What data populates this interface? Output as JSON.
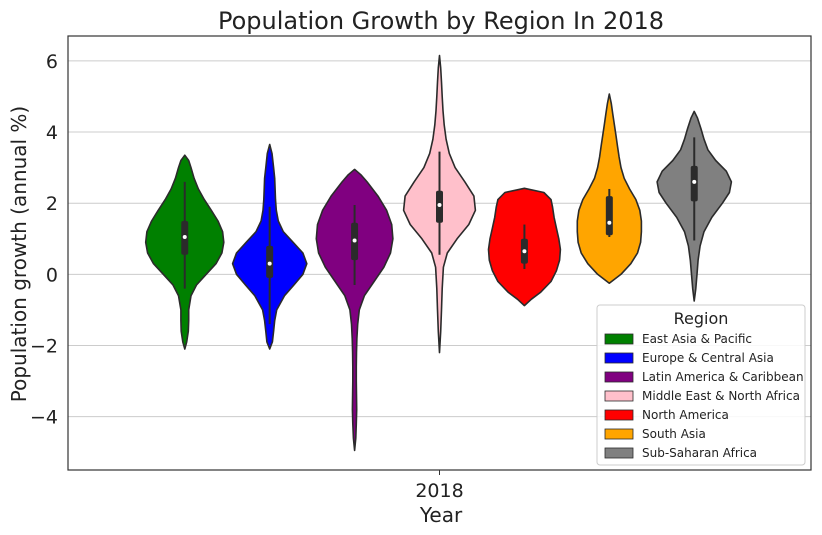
{
  "chart_data": {
    "type": "violin",
    "title": "Population Growth by Region In 2018",
    "xlabel": "Year",
    "ylabel": "Population growth (annual %)",
    "categories": [
      "2018"
    ],
    "ylim": [
      -5.5,
      6.7
    ],
    "yticks": [
      -4,
      -2,
      0,
      2,
      4,
      6
    ],
    "ytick_labels": [
      "−4",
      "−2",
      "0",
      "2",
      "4",
      "6"
    ],
    "grid": "horizontal",
    "legend": {
      "title": "Region",
      "placement": "lower-right"
    },
    "series": [
      {
        "name": "East Asia & Pacific",
        "color": "#008000",
        "profile": [
          [
            -2.1,
            0
          ],
          [
            -1.9,
            0.05
          ],
          [
            -1.6,
            0.09
          ],
          [
            -1.3,
            0.1
          ],
          [
            -1.0,
            0.1
          ],
          [
            -0.6,
            0.16
          ],
          [
            -0.3,
            0.3
          ],
          [
            0.0,
            0.55
          ],
          [
            0.3,
            0.8
          ],
          [
            0.6,
            0.95
          ],
          [
            0.9,
            1.0
          ],
          [
            1.2,
            0.97
          ],
          [
            1.5,
            0.85
          ],
          [
            1.8,
            0.68
          ],
          [
            2.1,
            0.5
          ],
          [
            2.4,
            0.35
          ],
          [
            2.7,
            0.24
          ],
          [
            3.0,
            0.16
          ],
          [
            3.2,
            0.1
          ],
          [
            3.35,
            0
          ]
        ],
        "whisker": [
          -0.4,
          2.6
        ],
        "q1": 0.55,
        "q3": 1.5,
        "median": 1.05
      },
      {
        "name": "Europe & Central Asia",
        "color": "#0000ff",
        "profile": [
          [
            -2.1,
            0
          ],
          [
            -1.9,
            0.07
          ],
          [
            -1.6,
            0.1
          ],
          [
            -1.3,
            0.13
          ],
          [
            -1.0,
            0.18
          ],
          [
            -0.6,
            0.38
          ],
          [
            -0.3,
            0.62
          ],
          [
            0.0,
            0.85
          ],
          [
            0.3,
            0.95
          ],
          [
            0.6,
            0.85
          ],
          [
            0.9,
            0.6
          ],
          [
            1.2,
            0.35
          ],
          [
            1.5,
            0.22
          ],
          [
            1.8,
            0.17
          ],
          [
            2.1,
            0.15
          ],
          [
            2.4,
            0.14
          ],
          [
            2.7,
            0.13
          ],
          [
            3.0,
            0.1
          ],
          [
            3.4,
            0.06
          ],
          [
            3.65,
            0
          ]
        ],
        "whisker": [
          -1.4,
          1.9
        ],
        "q1": -0.1,
        "q3": 0.8,
        "median": 0.3
      },
      {
        "name": "Latin America & Caribbean",
        "color": "#800080",
        "profile": [
          [
            -4.95,
            0
          ],
          [
            -4.6,
            0.03
          ],
          [
            -4.2,
            0.045
          ],
          [
            -3.8,
            0.055
          ],
          [
            -3.4,
            0.05
          ],
          [
            -3.0,
            0.045
          ],
          [
            -2.6,
            0.045
          ],
          [
            -2.2,
            0.05
          ],
          [
            -1.8,
            0.06
          ],
          [
            -1.4,
            0.08
          ],
          [
            -1.0,
            0.12
          ],
          [
            -0.6,
            0.25
          ],
          [
            -0.2,
            0.5
          ],
          [
            0.2,
            0.75
          ],
          [
            0.6,
            0.92
          ],
          [
            1.0,
            0.98
          ],
          [
            1.4,
            0.95
          ],
          [
            1.8,
            0.82
          ],
          [
            2.2,
            0.6
          ],
          [
            2.6,
            0.32
          ],
          [
            2.8,
            0.16
          ],
          [
            2.95,
            0
          ]
        ],
        "whisker": [
          -0.3,
          1.95
        ],
        "q1": 0.4,
        "q3": 1.45,
        "median": 0.95
      },
      {
        "name": "Middle East & North Africa",
        "color": "#ffc0cb",
        "profile": [
          [
            -2.2,
            0
          ],
          [
            -1.6,
            0.03
          ],
          [
            -1.0,
            0.05
          ],
          [
            -0.4,
            0.07
          ],
          [
            0.2,
            0.1
          ],
          [
            0.6,
            0.2
          ],
          [
            1.0,
            0.45
          ],
          [
            1.4,
            0.75
          ],
          [
            1.8,
            0.92
          ],
          [
            2.2,
            0.88
          ],
          [
            2.6,
            0.65
          ],
          [
            3.0,
            0.4
          ],
          [
            3.4,
            0.25
          ],
          [
            3.8,
            0.17
          ],
          [
            4.2,
            0.12
          ],
          [
            4.6,
            0.09
          ],
          [
            5.0,
            0.07
          ],
          [
            5.4,
            0.05
          ],
          [
            5.8,
            0.03
          ],
          [
            6.15,
            0
          ]
        ],
        "whisker": [
          0.55,
          3.45
        ],
        "q1": 1.45,
        "q3": 2.35,
        "median": 1.95
      },
      {
        "name": "North America",
        "color": "#ff0000",
        "profile": [
          [
            -0.88,
            0
          ],
          [
            -0.7,
            0.18
          ],
          [
            -0.5,
            0.42
          ],
          [
            -0.2,
            0.68
          ],
          [
            0.1,
            0.82
          ],
          [
            0.4,
            0.9
          ],
          [
            0.7,
            0.92
          ],
          [
            1.0,
            0.88
          ],
          [
            1.3,
            0.82
          ],
          [
            1.6,
            0.76
          ],
          [
            1.9,
            0.72
          ],
          [
            2.1,
            0.68
          ],
          [
            2.3,
            0.5
          ],
          [
            2.42,
            0
          ]
        ],
        "whisker": [
          0.15,
          1.4
        ],
        "q1": 0.3,
        "q3": 1.0,
        "median": 0.65
      },
      {
        "name": "South Asia",
        "color": "#ffa500",
        "profile": [
          [
            -0.25,
            0
          ],
          [
            0.0,
            0.3
          ],
          [
            0.3,
            0.55
          ],
          [
            0.6,
            0.72
          ],
          [
            0.9,
            0.8
          ],
          [
            1.2,
            0.82
          ],
          [
            1.5,
            0.82
          ],
          [
            1.8,
            0.78
          ],
          [
            2.1,
            0.68
          ],
          [
            2.4,
            0.52
          ],
          [
            2.7,
            0.38
          ],
          [
            3.0,
            0.3
          ],
          [
            3.3,
            0.25
          ],
          [
            3.6,
            0.21
          ],
          [
            3.9,
            0.17
          ],
          [
            4.2,
            0.13
          ],
          [
            4.5,
            0.09
          ],
          [
            4.8,
            0.05
          ],
          [
            5.07,
            0
          ]
        ],
        "whisker": [
          1.05,
          2.4
        ],
        "q1": 1.1,
        "q3": 2.2,
        "median": 1.45
      },
      {
        "name": "Sub-Saharan Africa",
        "color": "#808080",
        "profile": [
          [
            -0.75,
            0
          ],
          [
            -0.4,
            0.04
          ],
          [
            0.0,
            0.07
          ],
          [
            0.4,
            0.1
          ],
          [
            0.8,
            0.15
          ],
          [
            1.2,
            0.25
          ],
          [
            1.6,
            0.45
          ],
          [
            2.0,
            0.72
          ],
          [
            2.3,
            0.9
          ],
          [
            2.6,
            0.95
          ],
          [
            2.9,
            0.82
          ],
          [
            3.2,
            0.55
          ],
          [
            3.5,
            0.35
          ],
          [
            3.8,
            0.25
          ],
          [
            4.1,
            0.17
          ],
          [
            4.4,
            0.08
          ],
          [
            4.58,
            0
          ]
        ],
        "whisker": [
          0.95,
          3.85
        ],
        "q1": 2.05,
        "q3": 3.05,
        "median": 2.6
      }
    ]
  }
}
